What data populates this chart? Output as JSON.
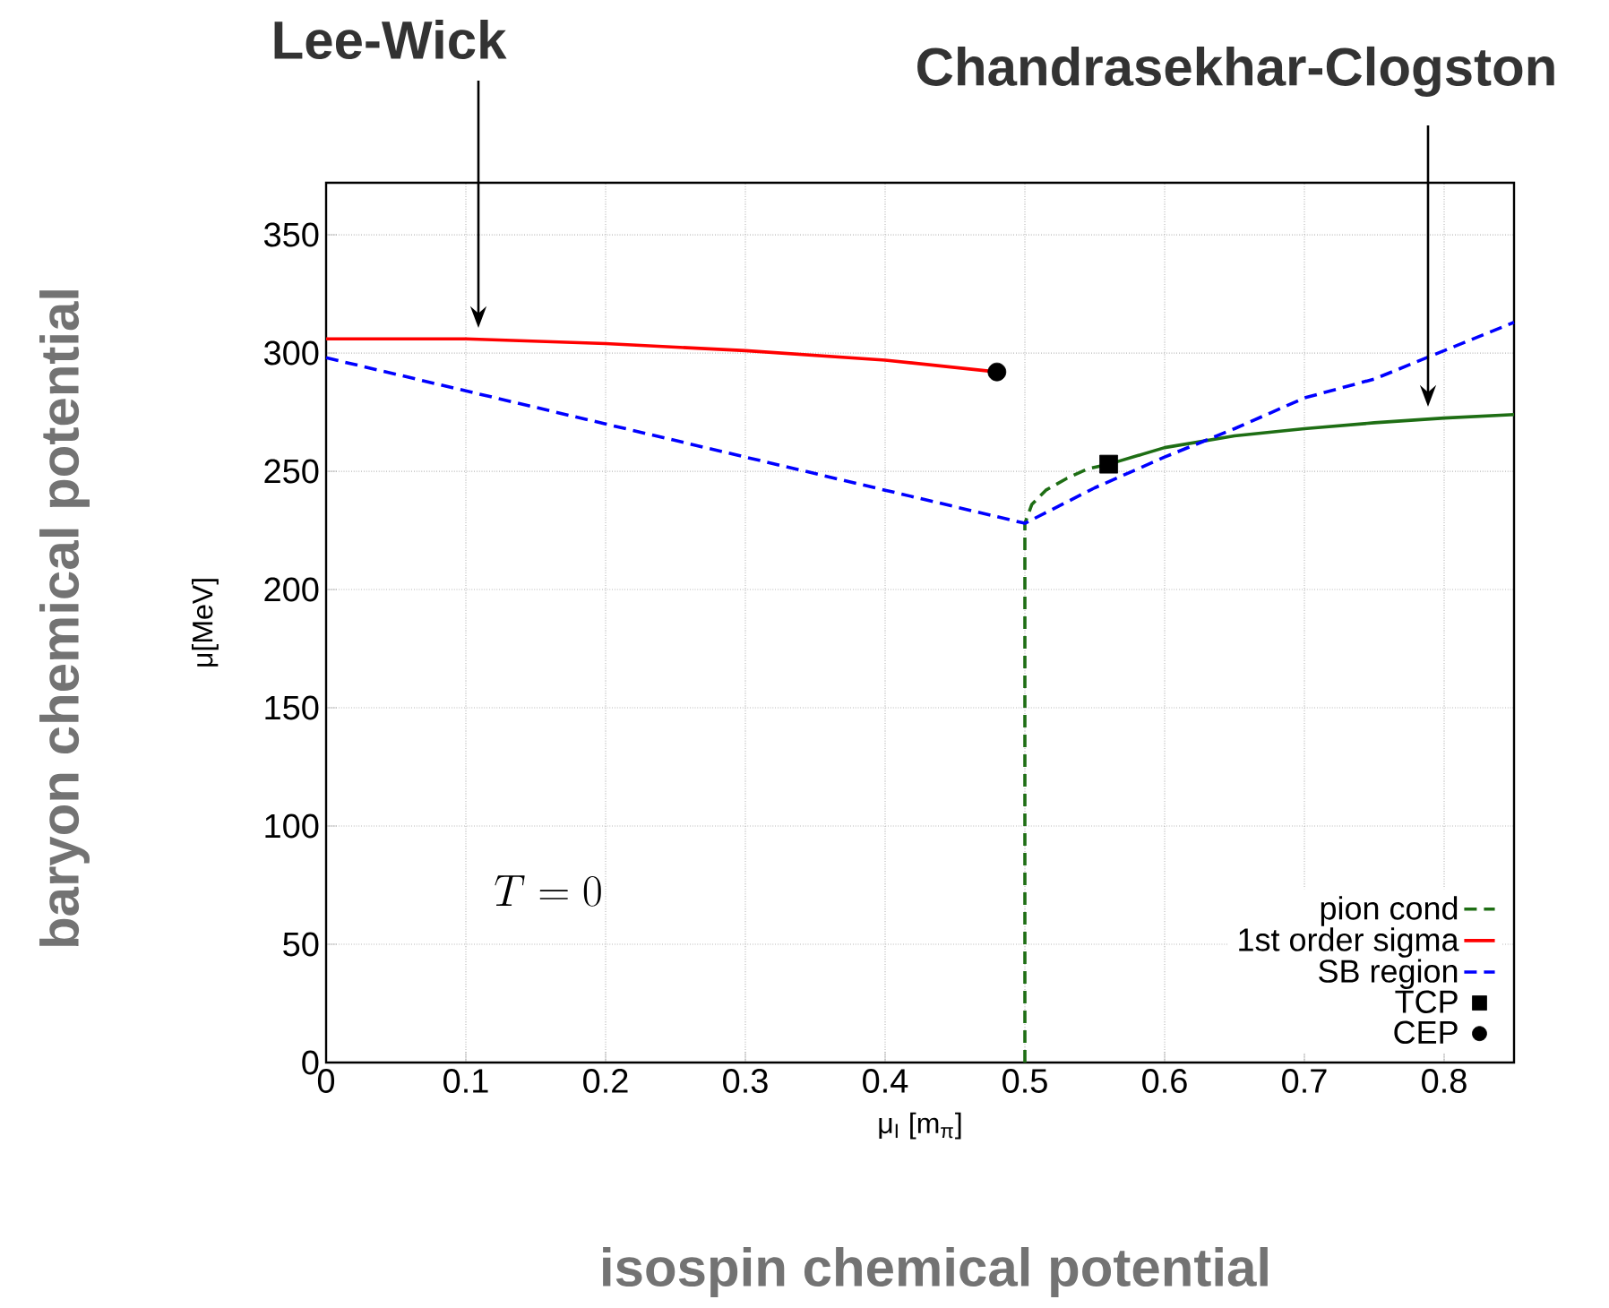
{
  "chart_data": {
    "type": "line",
    "xlabel": "μ$_{I}$ [m$_{π}$]",
    "ylabel": "μ[MeV]",
    "xlim": [
      0,
      0.85
    ],
    "ylim": [
      0,
      372
    ],
    "xticks": [
      0,
      0.1,
      0.2,
      0.3,
      0.4,
      0.5,
      0.6,
      0.7,
      0.8
    ],
    "yticks": [
      0,
      50,
      100,
      150,
      200,
      250,
      300,
      350
    ],
    "grid": true,
    "legend": "bottom right",
    "series": [
      {
        "name": "pion cond",
        "color": "#1e6e14",
        "line_style": "dashed",
        "x": [
          0.5,
          0.5,
          0.505,
          0.515,
          0.53,
          0.545,
          0.56
        ],
        "values": [
          0,
          228,
          236,
          242,
          247,
          251,
          253
        ]
      },
      {
        "color": "#1e6e14",
        "line_style": "solid",
        "x": [
          0.56,
          0.6,
          0.65,
          0.7,
          0.75,
          0.8,
          0.85
        ],
        "values": [
          253,
          260,
          265,
          268,
          270.5,
          272.5,
          274
        ]
      },
      {
        "name": "1st order sigma",
        "color": "#ff0000",
        "line_style": "solid",
        "x": [
          0,
          0.1,
          0.2,
          0.3,
          0.4,
          0.48
        ],
        "values": [
          306,
          306,
          304,
          301,
          297,
          292
        ]
      },
      {
        "name": "SB region",
        "color": "#0000ff",
        "line_style": "dashed",
        "x": [
          0,
          0.1,
          0.2,
          0.3,
          0.4,
          0.5,
          0.55,
          0.6,
          0.65,
          0.7,
          0.75,
          0.8,
          0.85
        ],
        "values": [
          298,
          284,
          270,
          256,
          242,
          228,
          243,
          256,
          268,
          281,
          289,
          301,
          313
        ]
      },
      {
        "name": "TCP",
        "type": "scatter",
        "color": "#000000",
        "marker": "square",
        "x": [
          0.56
        ],
        "values": [
          253
        ]
      },
      {
        "name": "CEP",
        "type": "scatter",
        "color": "#000000",
        "marker": "circle",
        "x": [
          0.48
        ],
        "values": [
          292
        ]
      }
    ],
    "annotations": [
      "Lee-Wick",
      "Chandrasekhar-Clogston",
      "T = 0",
      "baryon chemical potential",
      "isospin chemical potential"
    ]
  }
}
